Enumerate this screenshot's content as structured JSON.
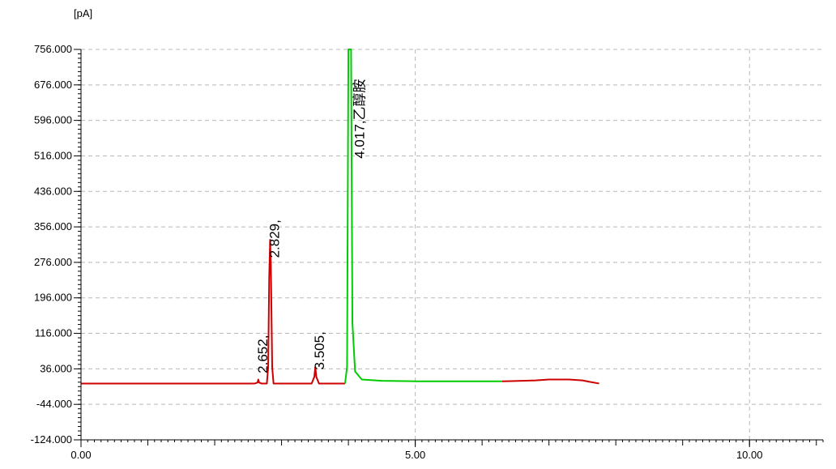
{
  "chart_data": {
    "type": "line",
    "ylabel": "[pA]",
    "xlabel": "",
    "xlim": [
      0,
      11.1
    ],
    "ylim": [
      -124,
      756
    ],
    "grid": true,
    "y_ticks": [
      756,
      676,
      596,
      516,
      436,
      356,
      276,
      196,
      116,
      36,
      -44,
      -124
    ],
    "y_tick_labels": [
      "756.000",
      "676.000",
      "596.000",
      "516.000",
      "436.000",
      "356.000",
      "276.000",
      "196.000",
      "116.000",
      "36.000",
      "-44.000",
      "-124.000"
    ],
    "x_ticks": [
      0,
      5,
      10
    ],
    "x_tick_labels": [
      "0.00",
      "5.00",
      "10.00"
    ],
    "series": [
      {
        "color": "#cc0000",
        "points": [
          [
            0,
            3
          ],
          [
            2.6,
            3
          ],
          [
            2.64,
            5
          ],
          [
            2.652,
            12
          ],
          [
            2.665,
            5
          ],
          [
            2.7,
            3
          ],
          [
            2.78,
            3
          ],
          [
            2.8,
            40
          ],
          [
            2.815,
            240
          ],
          [
            2.829,
            327
          ],
          [
            2.84,
            270
          ],
          [
            2.86,
            40
          ],
          [
            2.88,
            3
          ],
          [
            3.45,
            3
          ],
          [
            3.49,
            18
          ],
          [
            3.505,
            40
          ],
          [
            3.52,
            18
          ],
          [
            3.56,
            3
          ],
          [
            3.95,
            3
          ]
        ]
      },
      {
        "color": "#00cc00",
        "points": [
          [
            3.95,
            3
          ],
          [
            3.98,
            40
          ],
          [
            4.0,
            756
          ],
          [
            4.017,
            756
          ],
          [
            4.04,
            756
          ],
          [
            4.06,
            140
          ],
          [
            4.1,
            30
          ],
          [
            4.2,
            12
          ],
          [
            4.5,
            9
          ],
          [
            5.0,
            8
          ],
          [
            6.0,
            8
          ],
          [
            6.3,
            8
          ]
        ]
      },
      {
        "color": "#cc0000",
        "points": [
          [
            6.3,
            8
          ],
          [
            6.6,
            9
          ],
          [
            6.8,
            10
          ],
          [
            7.0,
            12
          ],
          [
            7.3,
            12
          ],
          [
            7.5,
            10
          ],
          [
            7.6,
            7
          ],
          [
            7.75,
            3
          ]
        ]
      }
    ],
    "peak_labels": [
      {
        "text": "2.652,",
        "x": 2.652
      },
      {
        "text": "2.829,",
        "x": 2.829
      },
      {
        "text": "3.505,",
        "x": 3.505
      },
      {
        "text": "4.017,乙醇胺",
        "x": 4.017
      }
    ]
  }
}
